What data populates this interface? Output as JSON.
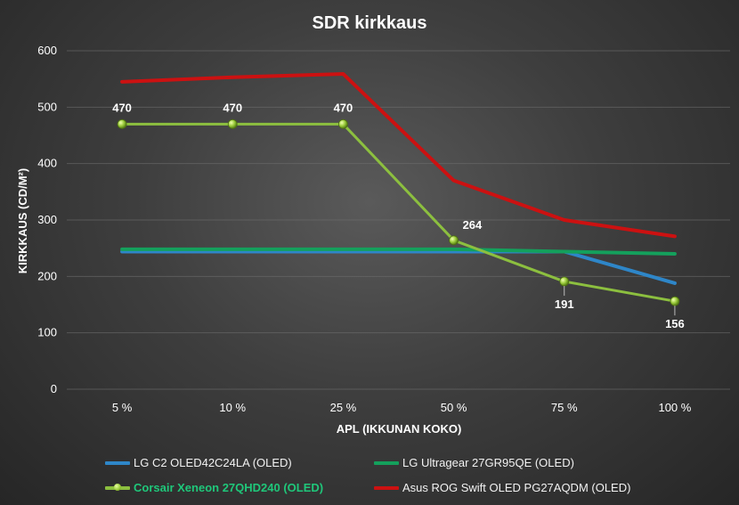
{
  "chart_data": {
    "type": "line",
    "title": "SDR kirkkaus",
    "xlabel": "APL (IKKUNAN KOKO)",
    "ylabel": "KIRKKAUS (CD/M²)",
    "categories": [
      "5 %",
      "10 %",
      "25 %",
      "50 %",
      "75 %",
      "100 %"
    ],
    "ylim": [
      0,
      600
    ],
    "yticks": [
      0,
      100,
      200,
      300,
      400,
      500,
      600
    ],
    "grid": true,
    "legend_position": "bottom",
    "series": [
      {
        "name": "LG C2 OLED42C24LA (OLED)",
        "color": "#2e86c8",
        "values": [
          244,
          244,
          244,
          244,
          244,
          188
        ],
        "markers": false,
        "labels": false
      },
      {
        "name": "LG Ultragear 27GR95QE (OLED)",
        "color": "#14a05c",
        "values": [
          248,
          248,
          248,
          248,
          244,
          240
        ],
        "markers": false,
        "labels": false
      },
      {
        "name": "Corsair Xeneon 27QHD240 (OLED)",
        "color": "#8cbf3f",
        "values": [
          470,
          470,
          470,
          264,
          191,
          156
        ],
        "markers": true,
        "labels": true,
        "highlight": true
      },
      {
        "name": "Asus ROG Swift OLED PG27AQDM (OLED)",
        "color": "#cc1111",
        "values": [
          545,
          553,
          559,
          370,
          300,
          271
        ],
        "markers": false,
        "labels": false
      }
    ]
  }
}
